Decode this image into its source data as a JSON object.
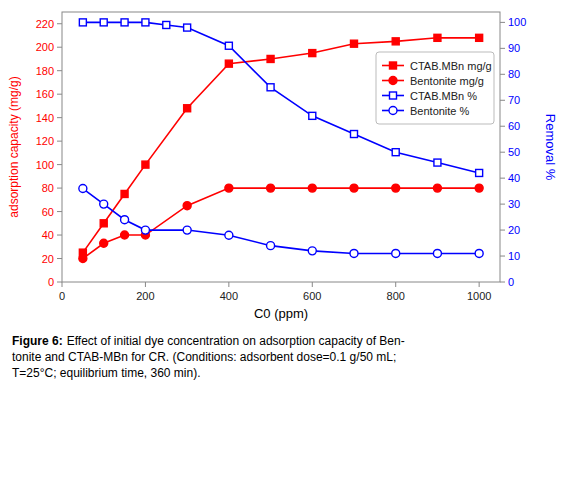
{
  "chart_data": {
    "type": "line",
    "x_label": "C0 (ppm)",
    "y_label": "adsorption capacity (mg/g)",
    "y2_label": "Removal %",
    "xlim": [
      0,
      1050
    ],
    "xticks": [
      0,
      200,
      400,
      600,
      800,
      1000
    ],
    "ylim": [
      0,
      230
    ],
    "yticks": [
      0,
      20,
      40,
      60,
      80,
      100,
      120,
      140,
      160,
      180,
      200,
      220
    ],
    "y2lim": [
      0,
      104
    ],
    "y2ticks": [
      0,
      10,
      20,
      30,
      40,
      50,
      60,
      70,
      80,
      90,
      100
    ],
    "grid": false,
    "legend": "upper right",
    "series": [
      {
        "name": "CTAB.MBn mg/g",
        "color": "#FF0000",
        "marker": "square",
        "line_style": "solid",
        "x": [
          50,
          100,
          150,
          200,
          300,
          400,
          500,
          600,
          700,
          800,
          900,
          1000
        ],
        "values": [
          25,
          50,
          75,
          100,
          148,
          186,
          190,
          195,
          203,
          205,
          208,
          208
        ]
      },
      {
        "name": "Bentonite mg/g",
        "color": "#FF0000",
        "marker": "circle",
        "line_style": "solid",
        "x": [
          50,
          100,
          150,
          200,
          300,
          400,
          500,
          600,
          700,
          800,
          900,
          1000
        ],
        "values": [
          20,
          33,
          40,
          40,
          65,
          80,
          80,
          80,
          80,
          80,
          80,
          80
        ]
      },
      {
        "name": "CTAB.MBn %",
        "color": "#0000FF",
        "marker": "open-square",
        "line_style": "solid",
        "axis": "y2",
        "x": [
          50,
          100,
          150,
          200,
          250,
          300,
          400,
          500,
          600,
          700,
          800,
          900,
          1000
        ],
        "values": [
          100,
          100,
          100,
          100,
          99,
          98,
          91,
          75,
          64,
          57,
          50,
          46,
          42
        ]
      },
      {
        "name": "Bentonite %",
        "color": "#0000FF",
        "marker": "open-circle",
        "line_style": "solid",
        "axis": "y2",
        "x": [
          50,
          100,
          150,
          200,
          300,
          400,
          500,
          600,
          700,
          800,
          900,
          1000
        ],
        "values": [
          36,
          30,
          24,
          20,
          20,
          18,
          14,
          12,
          11,
          11,
          11,
          11
        ]
      }
    ],
    "annotations": [
      "Figure 6:",
      " Effect of initial dye concentration on adsorption capacity of Ben-\ntonite and CTAB-MBn for CR.  (Conditions: adsorbent dose=0.1 g/50 mL;\nT=25°C; equilibrium time, 360 min)."
    ]
  }
}
